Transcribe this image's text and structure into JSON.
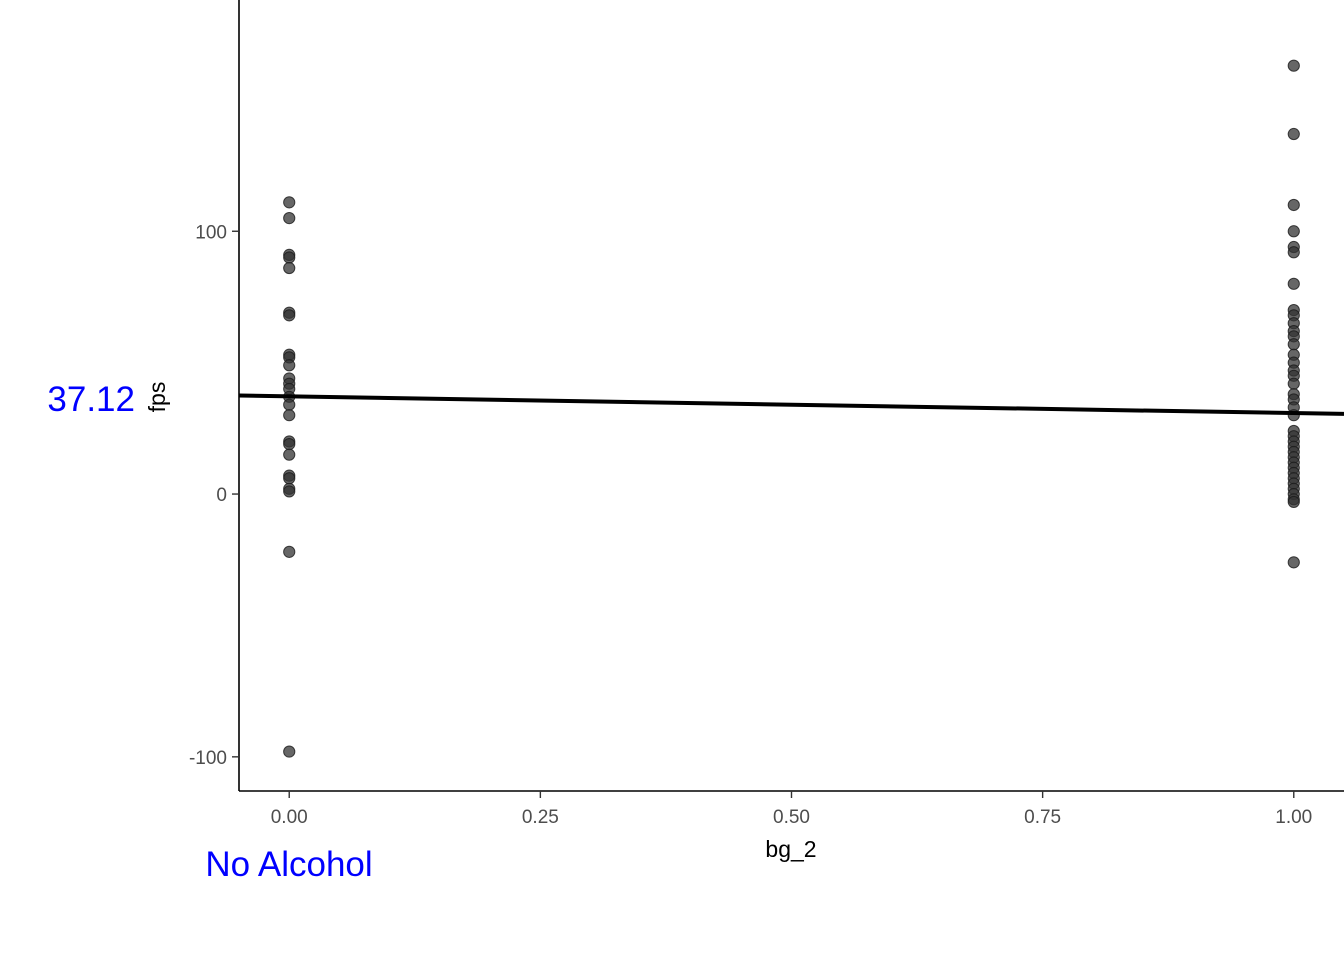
{
  "chart_data": {
    "type": "scatter",
    "xlabel": "bg_2",
    "ylabel": "fps",
    "xlim": [
      -0.05,
      1.05
    ],
    "ylim": [
      -113,
      188
    ],
    "x_ticks": [
      {
        "value": 0,
        "label": "0.00"
      },
      {
        "value": 0.25,
        "label": "0.25"
      },
      {
        "value": 0.5,
        "label": "0.50"
      },
      {
        "value": 0.75,
        "label": "0.75"
      },
      {
        "value": 1,
        "label": "1.00"
      }
    ],
    "y_ticks": [
      {
        "value": 100,
        "label": "100"
      },
      {
        "value": 0,
        "label": "0"
      },
      {
        "value": -100,
        "label": "-100"
      }
    ],
    "grid": false,
    "point_color": "#333333",
    "line_color": "#000000",
    "annotation_color": "#0000ff",
    "points": [
      {
        "x": 0,
        "y": 111
      },
      {
        "x": 0,
        "y": 105
      },
      {
        "x": 0,
        "y": 91
      },
      {
        "x": 0,
        "y": 90
      },
      {
        "x": 0,
        "y": 86
      },
      {
        "x": 0,
        "y": 69
      },
      {
        "x": 0,
        "y": 68
      },
      {
        "x": 0,
        "y": 53
      },
      {
        "x": 0,
        "y": 52
      },
      {
        "x": 0,
        "y": 49
      },
      {
        "x": 0,
        "y": 44
      },
      {
        "x": 0,
        "y": 42
      },
      {
        "x": 0,
        "y": 40
      },
      {
        "x": 0,
        "y": 37
      },
      {
        "x": 0,
        "y": 34
      },
      {
        "x": 0,
        "y": 30
      },
      {
        "x": 0,
        "y": 20
      },
      {
        "x": 0,
        "y": 19
      },
      {
        "x": 0,
        "y": 15
      },
      {
        "x": 0,
        "y": 7
      },
      {
        "x": 0,
        "y": 6
      },
      {
        "x": 0,
        "y": 2
      },
      {
        "x": 0,
        "y": 1
      },
      {
        "x": 0,
        "y": -22
      },
      {
        "x": 0,
        "y": -98
      },
      {
        "x": 1,
        "y": 163
      },
      {
        "x": 1,
        "y": 137
      },
      {
        "x": 1,
        "y": 110
      },
      {
        "x": 1,
        "y": 100
      },
      {
        "x": 1,
        "y": 94
      },
      {
        "x": 1,
        "y": 92
      },
      {
        "x": 1,
        "y": 80
      },
      {
        "x": 1,
        "y": 70
      },
      {
        "x": 1,
        "y": 68
      },
      {
        "x": 1,
        "y": 65
      },
      {
        "x": 1,
        "y": 62
      },
      {
        "x": 1,
        "y": 60
      },
      {
        "x": 1,
        "y": 57
      },
      {
        "x": 1,
        "y": 53
      },
      {
        "x": 1,
        "y": 50
      },
      {
        "x": 1,
        "y": 47
      },
      {
        "x": 1,
        "y": 45
      },
      {
        "x": 1,
        "y": 42
      },
      {
        "x": 1,
        "y": 38
      },
      {
        "x": 1,
        "y": 36
      },
      {
        "x": 1,
        "y": 33
      },
      {
        "x": 1,
        "y": 30
      },
      {
        "x": 1,
        "y": 24
      },
      {
        "x": 1,
        "y": 22
      },
      {
        "x": 1,
        "y": 20
      },
      {
        "x": 1,
        "y": 18
      },
      {
        "x": 1,
        "y": 16
      },
      {
        "x": 1,
        "y": 14
      },
      {
        "x": 1,
        "y": 12
      },
      {
        "x": 1,
        "y": 10
      },
      {
        "x": 1,
        "y": 8
      },
      {
        "x": 1,
        "y": 6
      },
      {
        "x": 1,
        "y": 4
      },
      {
        "x": 1,
        "y": 2
      },
      {
        "x": 1,
        "y": 0
      },
      {
        "x": 1,
        "y": -2
      },
      {
        "x": 1,
        "y": -3
      },
      {
        "x": 1,
        "y": -26
      }
    ],
    "regression_line": {
      "x": [
        -0.05,
        1.05
      ],
      "y": [
        37.5,
        30.5
      ]
    },
    "annotations": {
      "intercept_label": "37.12",
      "x0_label": "No Alcohol"
    }
  }
}
